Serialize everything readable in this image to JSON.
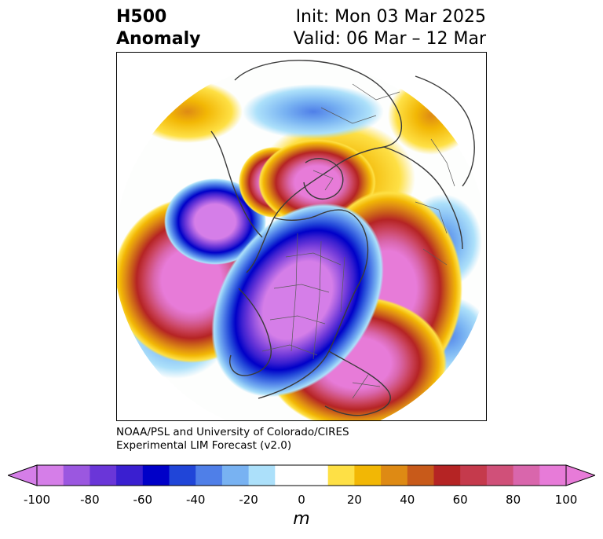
{
  "header": {
    "title_line1": "H500",
    "title_line2": "Anomaly",
    "init": "Init: Mon 03 Mar 2025",
    "valid": "Valid: 06 Mar – 12 Mar"
  },
  "credit": {
    "line1": "NOAA/PSL and University of Colorado/CIRES",
    "line2": "Experimental LIM Forecast (v2.0)"
  },
  "colorbar": {
    "unit": "m",
    "ticks": [
      "-100",
      "-80",
      "-60",
      "-40",
      "-20",
      "0",
      "20",
      "40",
      "60",
      "80",
      "100"
    ],
    "colors": [
      "#d57ee8",
      "#9b57e0",
      "#6a36d8",
      "#3a1fd0",
      "#0000c8",
      "#2045d8",
      "#4f7fe8",
      "#78b2f2",
      "#ace0fa",
      "#ffffff",
      "#ffffff",
      "#fee045",
      "#f2b705",
      "#de8a14",
      "#c85a1a",
      "#b52424",
      "#c53a4c",
      "#d05079",
      "#d966ac",
      "#e77bd8"
    ],
    "ends": {
      "low": "#d57ee8",
      "high": "#e77bd8"
    }
  },
  "map_data": {
    "projection": "north-polar-stereographic",
    "positive_color": "#e77bd8",
    "negative_color": "#6a36d8",
    "features": [
      {
        "name": "north-pacific-high",
        "sign": "positive",
        "peak_m": 100
      },
      {
        "name": "north-america-trough",
        "sign": "negative",
        "peak_m": -100
      },
      {
        "name": "eastern-us-ridge",
        "sign": "positive",
        "peak_m": 100
      },
      {
        "name": "north-atlantic-ridge",
        "sign": "positive",
        "peak_m": 100
      },
      {
        "name": "northern-europe-ridge",
        "sign": "positive",
        "peak_m": 100
      },
      {
        "name": "gulf-of-alaska-low",
        "sign": "negative",
        "peak_m": -80
      },
      {
        "name": "siberian-low",
        "sign": "negative",
        "peak_m": -40
      },
      {
        "name": "central-asia-high",
        "sign": "positive",
        "peak_m": 40
      },
      {
        "name": "eurasia-low",
        "sign": "negative",
        "peak_m": -40
      },
      {
        "name": "subtropical-atlantic-low",
        "sign": "negative",
        "peak_m": -40
      }
    ]
  }
}
